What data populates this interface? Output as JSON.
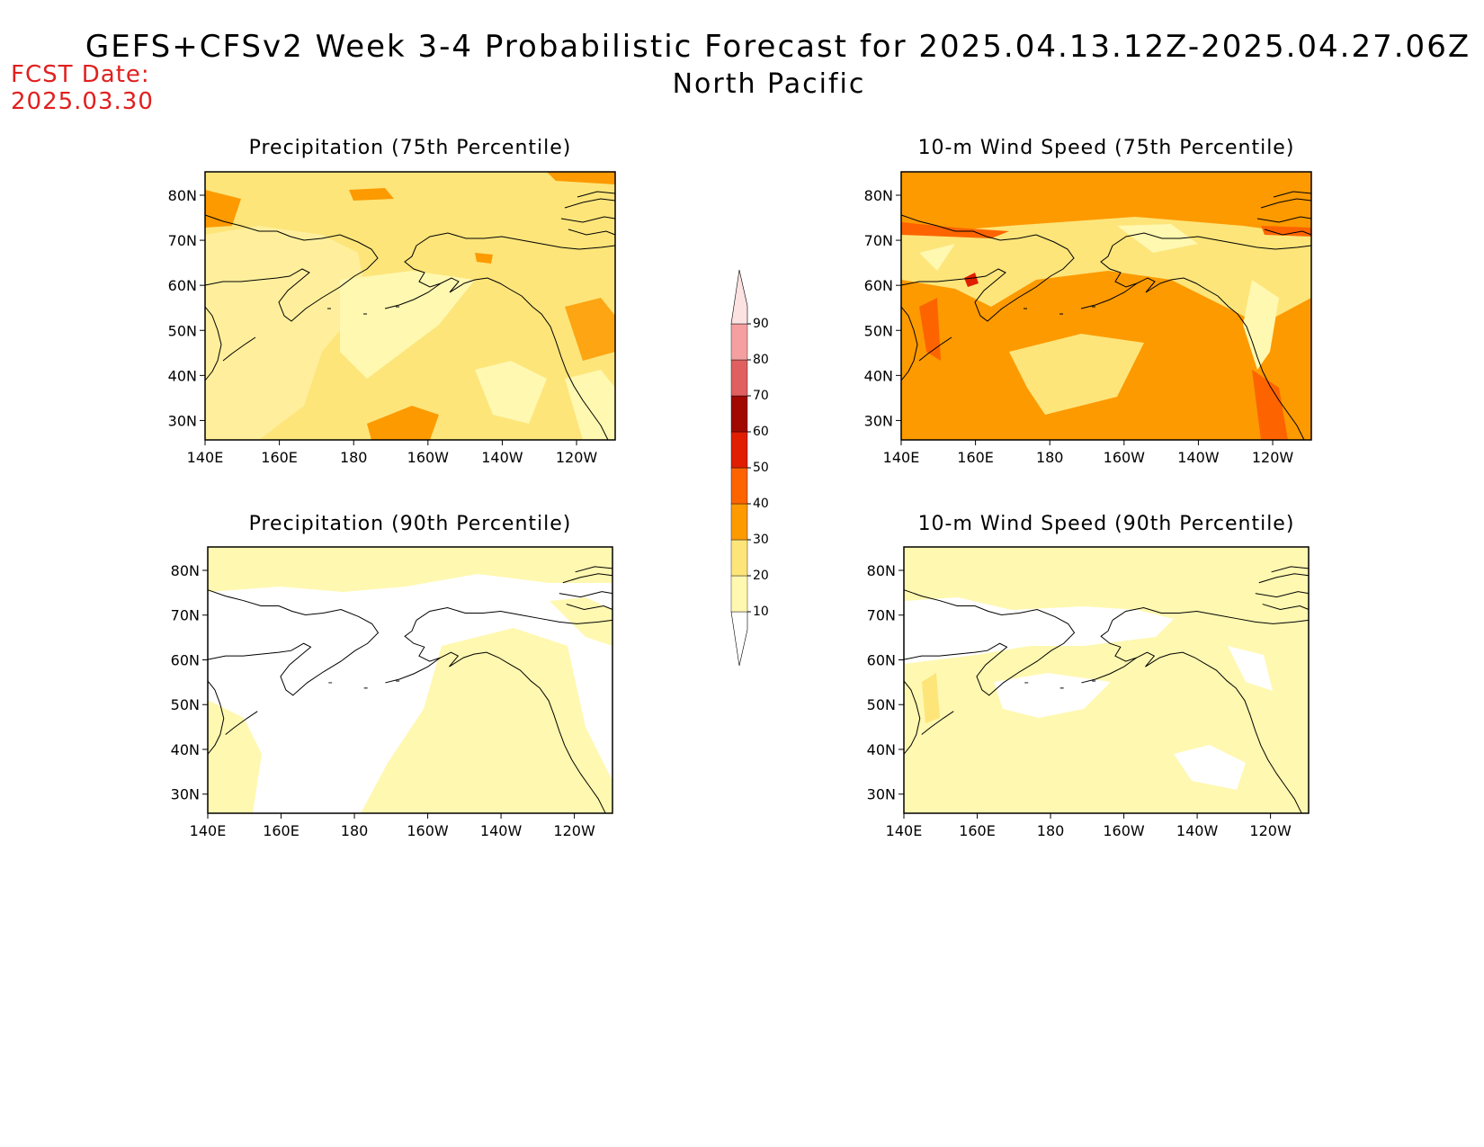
{
  "header": {
    "title": "GEFS+CFSv2 Week 3-4 Probabilistic Forecast for 2025.04.13.12Z-2025.04.27.06Z",
    "subtitle": "North Pacific",
    "fcst_label": "FCST Date:",
    "fcst_date": "2025.03.30"
  },
  "panels": [
    {
      "title": "Precipitation (75th Percentile)",
      "dominant_level": "20-30"
    },
    {
      "title": "10-m Wind Speed (75th Percentile)",
      "dominant_level": "30-40"
    },
    {
      "title": "Precipitation (90th Percentile)",
      "dominant_level": "<10"
    },
    {
      "title": "10-m Wind Speed (90th Percentile)",
      "dominant_level": "10-20"
    }
  ],
  "axes": {
    "lon_ticks": [
      "140E",
      "160E",
      "180",
      "160W",
      "140W",
      "120W"
    ],
    "lat_ticks": [
      "80N",
      "70N",
      "60N",
      "50N",
      "40N",
      "30N"
    ]
  },
  "colorbar": {
    "levels": [
      "10",
      "20",
      "30",
      "40",
      "50",
      "60",
      "70",
      "80",
      "90"
    ],
    "colors": [
      "#fff8b0",
      "#fde57a",
      "#fd9a00",
      "#fd6400",
      "#e01e00",
      "#a00800",
      "#e06060",
      "#f4a0a0",
      "#fde2e2"
    ]
  }
}
